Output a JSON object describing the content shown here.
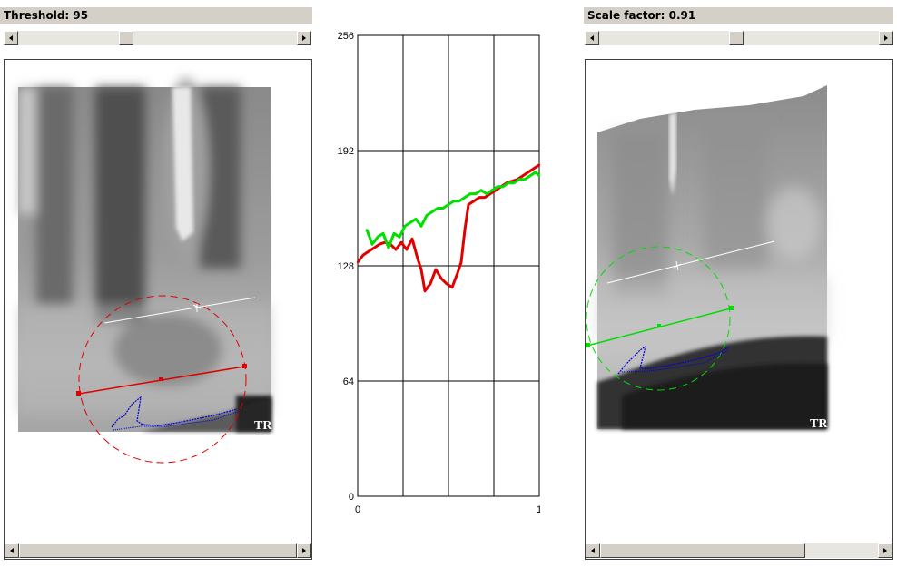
{
  "left": {
    "label_prefix": "Threshold: ",
    "value": "95",
    "slider_fraction": 0.39
  },
  "right": {
    "label_prefix": "Scale factor: ",
    "value": "0.91",
    "slider_fraction": 0.48
  },
  "image_logo_text": "TR",
  "colors": {
    "profile_a": "#e00000",
    "profile_b": "#00e000",
    "edge_trace": "#0000dd",
    "ui_gray": "#d4d0c8"
  },
  "chart_data": {
    "type": "line",
    "title": "",
    "xlabel": "",
    "ylabel": "",
    "xlim": [
      0,
      1
    ],
    "ylim": [
      0,
      256
    ],
    "x_ticks": [
      "0",
      "1"
    ],
    "y_ticks": [
      "0",
      "64",
      "128",
      "192",
      "256"
    ],
    "grid": true,
    "series": [
      {
        "color": "#e00000",
        "points": [
          [
            0.0,
            130
          ],
          [
            0.03,
            134
          ],
          [
            0.06,
            136
          ],
          [
            0.09,
            138
          ],
          [
            0.12,
            140
          ],
          [
            0.15,
            141
          ],
          [
            0.18,
            140
          ],
          [
            0.21,
            137
          ],
          [
            0.24,
            141
          ],
          [
            0.27,
            137
          ],
          [
            0.3,
            143
          ],
          [
            0.33,
            132
          ],
          [
            0.35,
            126
          ],
          [
            0.37,
            114
          ],
          [
            0.4,
            118
          ],
          [
            0.43,
            126
          ],
          [
            0.46,
            121
          ],
          [
            0.49,
            118
          ],
          [
            0.52,
            116
          ],
          [
            0.55,
            124
          ],
          [
            0.57,
            130
          ],
          [
            0.59,
            148
          ],
          [
            0.61,
            162
          ],
          [
            0.64,
            164
          ],
          [
            0.67,
            166
          ],
          [
            0.7,
            166
          ],
          [
            0.73,
            168
          ],
          [
            0.76,
            170
          ],
          [
            0.79,
            172
          ],
          [
            0.82,
            174
          ],
          [
            0.85,
            175
          ],
          [
            0.88,
            176
          ],
          [
            0.91,
            178
          ],
          [
            0.94,
            180
          ],
          [
            0.97,
            182
          ],
          [
            1.0,
            184
          ]
        ]
      },
      {
        "color": "#00e000",
        "points": [
          [
            0.05,
            148
          ],
          [
            0.08,
            140
          ],
          [
            0.11,
            144
          ],
          [
            0.14,
            146
          ],
          [
            0.17,
            138
          ],
          [
            0.2,
            146
          ],
          [
            0.23,
            144
          ],
          [
            0.26,
            150
          ],
          [
            0.29,
            152
          ],
          [
            0.32,
            154
          ],
          [
            0.35,
            150
          ],
          [
            0.38,
            156
          ],
          [
            0.41,
            158
          ],
          [
            0.44,
            160
          ],
          [
            0.47,
            160
          ],
          [
            0.5,
            162
          ],
          [
            0.53,
            164
          ],
          [
            0.56,
            164
          ],
          [
            0.59,
            166
          ],
          [
            0.62,
            168
          ],
          [
            0.65,
            168
          ],
          [
            0.68,
            170
          ],
          [
            0.71,
            168
          ],
          [
            0.74,
            170
          ],
          [
            0.77,
            172
          ],
          [
            0.8,
            172
          ],
          [
            0.83,
            174
          ],
          [
            0.86,
            174
          ],
          [
            0.89,
            176
          ],
          [
            0.92,
            176
          ],
          [
            0.95,
            178
          ],
          [
            0.98,
            180
          ],
          [
            1.0,
            178
          ]
        ]
      }
    ]
  }
}
